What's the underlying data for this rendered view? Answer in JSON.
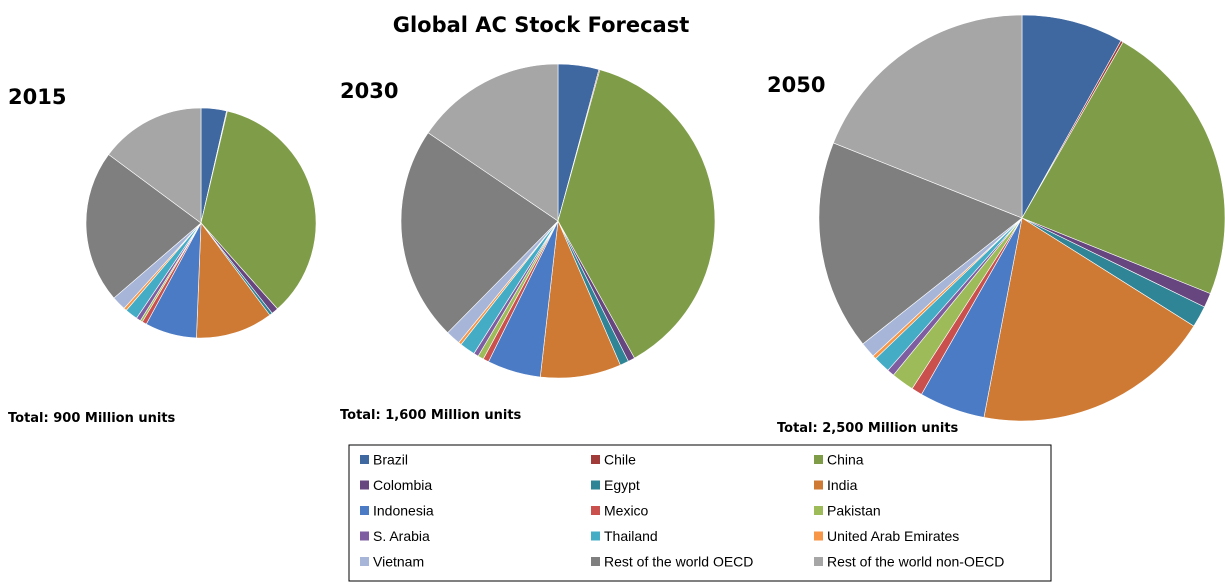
{
  "page_title": "Global AC Stock Forecast",
  "chart_data": {
    "type": "pie",
    "title": "Global AC Stock Forecast",
    "legend_position": "bottom-center",
    "categories": [
      "Brazil",
      "Chile",
      "China",
      "Colombia",
      "Egypt",
      "India",
      "Indonesia",
      "Mexico",
      "Pakistan",
      "S. Arabia",
      "Thailand",
      "United Arab Emirates",
      "Vietnam",
      "Rest of the world OECD",
      "Rest of the world non-OECD"
    ],
    "colors": [
      "#3F68A0",
      "#A03B3A",
      "#7F9D48",
      "#67457F",
      "#2F8496",
      "#CF7A34",
      "#4C7BC5",
      "#C9504D",
      "#9DBB58",
      "#7E5EA0",
      "#45ACC6",
      "#F79646",
      "#A6B5D8",
      "#7F7F7F",
      "#A6A6A6"
    ],
    "pies": [
      {
        "year": "2015",
        "total_label": "Total: 900 Million units",
        "shares_percent": [
          3.4,
          0.1,
          33.0,
          0.9,
          0.4,
          10.3,
          6.9,
          0.6,
          0.3,
          0.6,
          1.7,
          0.4,
          1.9,
          20.4,
          14.1
        ]
      },
      {
        "year": "2030",
        "total_label": "Total: 1,600 Million units",
        "shares_percent": [
          4.2,
          0.1,
          37.6,
          0.7,
          0.9,
          8.3,
          5.5,
          0.6,
          0.6,
          0.5,
          1.6,
          0.3,
          1.5,
          22.1,
          15.5
        ]
      },
      {
        "year": "2050",
        "total_label": "Total: 2,500 Million units",
        "shares_percent": [
          8.5,
          0.2,
          23.9,
          1.2,
          1.8,
          20.0,
          5.5,
          0.9,
          1.9,
          0.6,
          1.4,
          0.3,
          1.3,
          17.5,
          19.9
        ]
      }
    ]
  }
}
